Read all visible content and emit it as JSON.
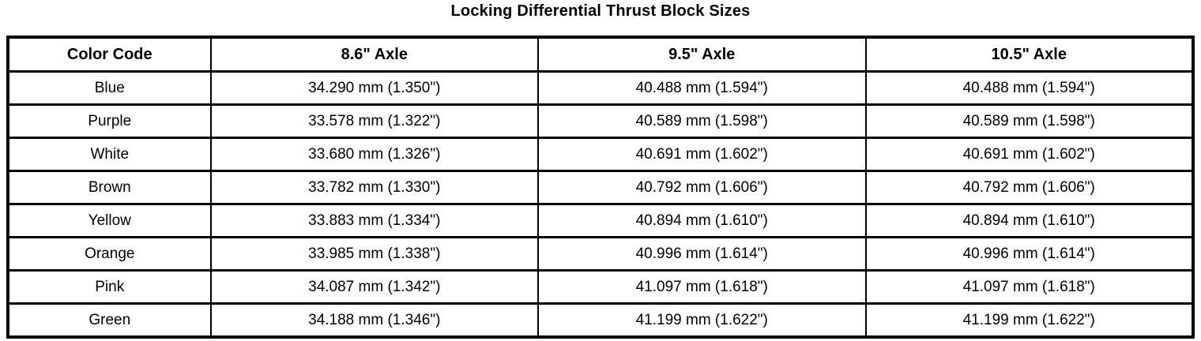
{
  "title": "Locking Differential Thrust Block Sizes",
  "colors": {
    "border": "#000000",
    "background": "#ffffff",
    "text": "#000000"
  },
  "table": {
    "headers": [
      "Color Code",
      "8.6\" Axle",
      "9.5\" Axle",
      "10.5\" Axle"
    ],
    "rows": [
      [
        "Blue",
        "34.290 mm (1.350\")",
        "40.488 mm (1.594\")",
        "40.488 mm (1.594\")"
      ],
      [
        "Purple",
        "33.578 mm (1.322\")",
        "40.589 mm (1.598\")",
        "40.589 mm (1.598\")"
      ],
      [
        "White",
        "33.680 mm (1.326\")",
        "40.691 mm (1.602\")",
        "40.691 mm (1.602\")"
      ],
      [
        "Brown",
        "33.782 mm (1.330\")",
        "40.792 mm (1.606\")",
        "40.792 mm (1.606\")"
      ],
      [
        "Yellow",
        "33.883 mm (1.334\")",
        "40.894 mm (1.610\")",
        "40.894 mm (1.610\")"
      ],
      [
        "Orange",
        "33.985 mm (1.338\")",
        "40.996 mm (1.614\")",
        "40.996 mm (1.614\")"
      ],
      [
        "Pink",
        "34.087 mm (1.342\")",
        "41.097 mm (1.618\")",
        "41.097 mm (1.618\")"
      ],
      [
        "Green",
        "34.188 mm (1.346\")",
        "41.199 mm (1.622\")",
        "41.199 mm (1.622\")"
      ]
    ]
  },
  "chart_data": {
    "type": "table",
    "title": "Locking Differential Thrust Block Sizes",
    "columns": [
      "Color Code",
      "8.6\" Axle",
      "9.5\" Axle",
      "10.5\" Axle"
    ],
    "rows": [
      [
        "Blue",
        "34.290 mm (1.350\")",
        "40.488 mm (1.594\")",
        "40.488 mm (1.594\")"
      ],
      [
        "Purple",
        "33.578 mm (1.322\")",
        "40.589 mm (1.598\")",
        "40.589 mm (1.598\")"
      ],
      [
        "White",
        "33.680 mm (1.326\")",
        "40.691 mm (1.602\")",
        "40.691 mm (1.602\")"
      ],
      [
        "Brown",
        "33.782 mm (1.330\")",
        "40.792 mm (1.606\")",
        "40.792 mm (1.606\")"
      ],
      [
        "Yellow",
        "33.883 mm (1.334\")",
        "40.894 mm (1.610\")",
        "40.894 mm (1.610\")"
      ],
      [
        "Orange",
        "33.985 mm (1.338\")",
        "40.996 mm (1.614\")",
        "40.996 mm (1.614\")"
      ],
      [
        "Pink",
        "34.087 mm (1.342\")",
        "41.097 mm (1.618\")",
        "41.097 mm (1.618\")"
      ],
      [
        "Green",
        "34.188 mm (1.346\")",
        "41.199 mm (1.622\")",
        "41.199 mm (1.622\")"
      ]
    ]
  }
}
